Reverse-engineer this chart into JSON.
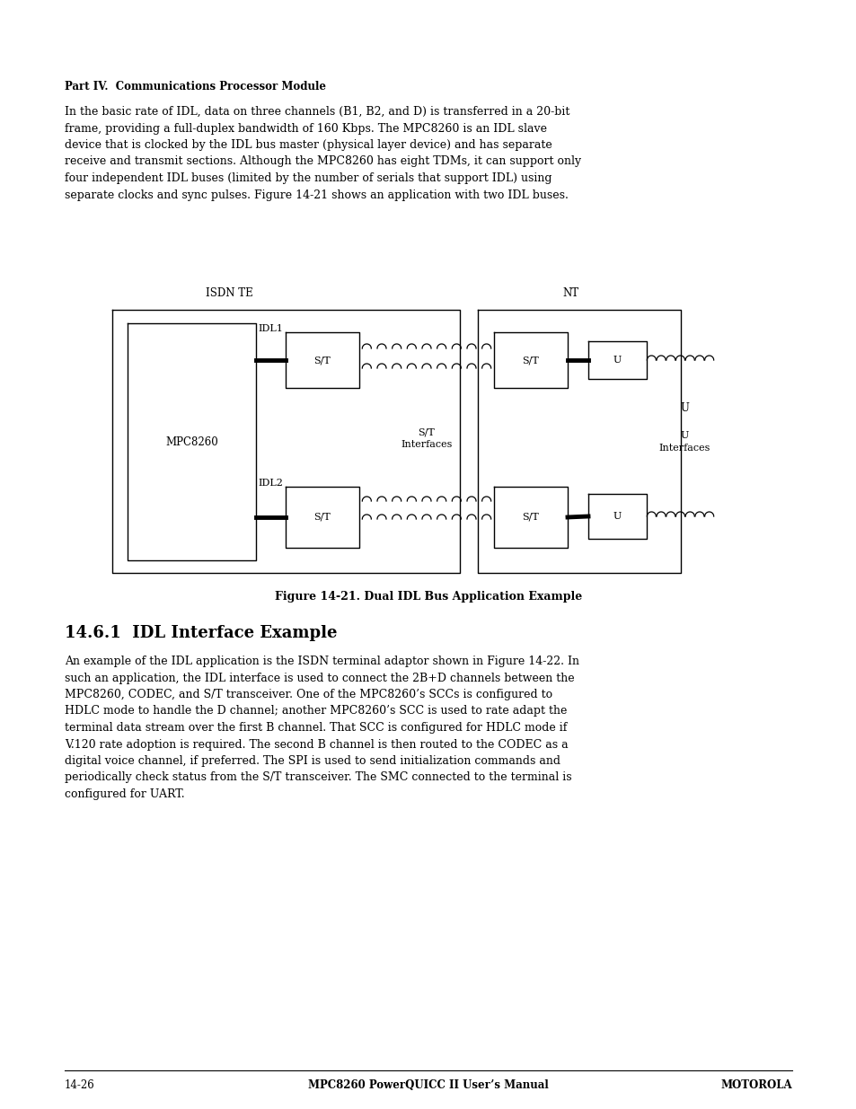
{
  "page_bg": "#ffffff",
  "header_bold": "Part IV.  Communications Processor Module",
  "para1": "In the basic rate of IDL, data on three channels (B1, B2, and D) is transferred in a 20-bit\nframe, providing a full-duplex bandwidth of 160 Kbps. The MPC8260 is an IDL slave\ndevice that is clocked by the IDL bus master (physical layer device) and has separate\nreceive and transmit sections. Although the MPC8260 has eight TDMs, it can support only\nfour independent IDL buses (limited by the number of serials that support IDL) using\nseparate clocks and sync pulses. Figure 14-21 shows an application with two IDL buses.",
  "fig_caption": "Figure 14-21. Dual IDL Bus Application Example",
  "section_title": "14.6.1  IDL Interface Example",
  "para2": "An example of the IDL application is the ISDN terminal adaptor shown in Figure 14-22. In\nsuch an application, the IDL interface is used to connect the 2B+D channels between the\nMPC8260, CODEC, and S/T transceiver. One of the MPC8260’s SCCs is configured to\nHDLC mode to handle the D channel; another MPC8260’s SCC is used to rate adapt the\nterminal data stream over the first B channel. That SCC is configured for HDLC mode if\nV.120 rate adoption is required. The second B channel is then routed to the CODEC as a\ndigital voice channel, if preferred. The SPI is used to send initialization commands and\nperiodically check status from the S/T transceiver. The SMC connected to the terminal is\nconfigured for UART.",
  "footer_left": "14-26",
  "footer_center": "MPC8260 PowerQUICC II User’s Manual",
  "footer_right": "MOTOROLA",
  "label_isdn_te": "ISDN TE",
  "label_nt": "NT",
  "label_mpc8260": "MPC8260",
  "label_idl1": "IDL1",
  "label_idl2": "IDL2",
  "label_st": "S/T",
  "label_u": "U",
  "label_st_ifaces": "S/T\nInterfaces",
  "label_u_ifaces": "U\nInterfaces"
}
